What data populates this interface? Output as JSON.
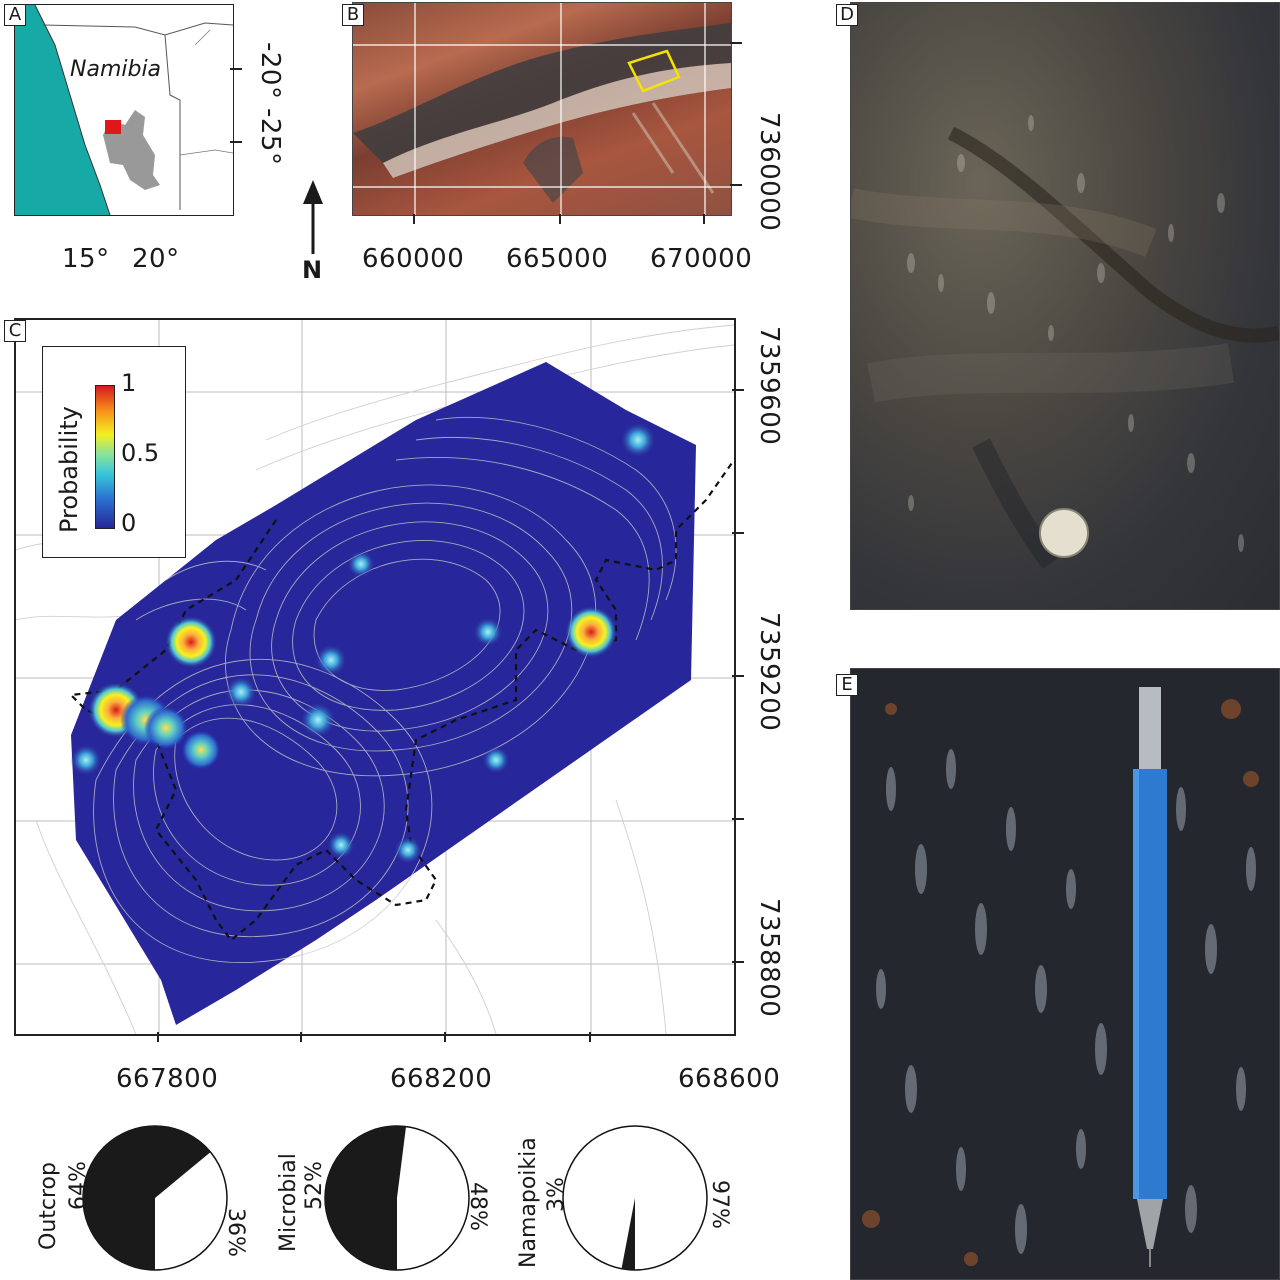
{
  "panels": {
    "a": "A",
    "b": "B",
    "c": "C",
    "d": "D",
    "e": "E"
  },
  "panel_a": {
    "country": "Namibia",
    "lat_labels": [
      "-20°",
      "-25°"
    ],
    "lon_labels": [
      "15°",
      "20°"
    ],
    "colors": {
      "ocean": "#17a9a6",
      "study_area": "#999999",
      "marker": "#e0161b"
    }
  },
  "panel_b": {
    "north_label": "N",
    "x_ticks": [
      "660000",
      "665000",
      "670000"
    ],
    "y_ticks": [
      "7360000"
    ],
    "box_color": "#f5e400"
  },
  "panel_c": {
    "x_ticks": [
      "667800",
      "668200",
      "668600"
    ],
    "y_ticks": [
      "7359600",
      "7359200",
      "7358800"
    ],
    "legend": {
      "title": "Probability",
      "max": "1",
      "mid": "0.5",
      "min": "0"
    },
    "colors": {
      "background": "#27269a",
      "contour": "#c8c8c8"
    }
  },
  "pies": [
    {
      "name": "Outcrop",
      "left_pct": "64%",
      "right_pct": "36%",
      "value": 64
    },
    {
      "name": "Microbial",
      "left_pct": "52%",
      "right_pct": "48%",
      "value": 52
    },
    {
      "name": "Namapoikia",
      "left_pct": "3%",
      "right_pct": "97%",
      "value": 3
    }
  ]
}
